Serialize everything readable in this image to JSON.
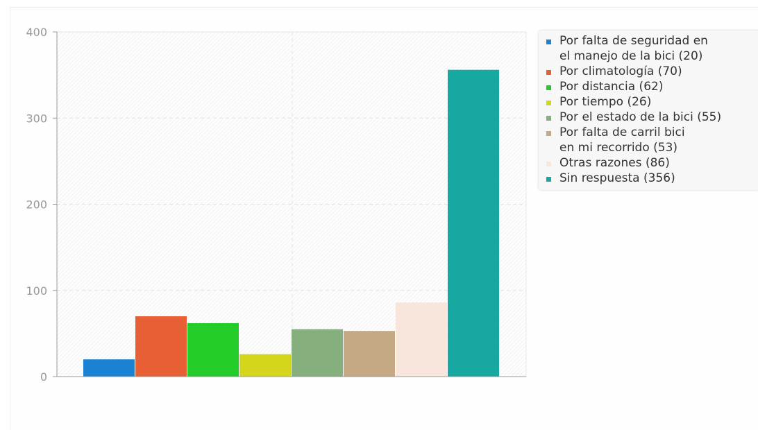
{
  "chart_data": {
    "type": "bar",
    "categories": [
      "Por falta de seguridad en\nel manejo de la bici (20)",
      "Por climatología (70)",
      "Por distancia (62)",
      "Por tiempo (26)",
      "Por el estado de la bici (55)",
      "Por falta de carril bici\nen mi recorrido (53)",
      "Otras razones (86)",
      "Sin respuesta (356)"
    ],
    "values": [
      20,
      70,
      62,
      26,
      55,
      53,
      86,
      356
    ],
    "colors": [
      "#1a81d3",
      "#e85f35",
      "#23cc28",
      "#d4d61c",
      "#85b07e",
      "#c5a983",
      "#f8e6dc",
      "#17a9a1"
    ],
    "ylim": [
      0,
      400
    ],
    "yticks": [
      "0",
      "100",
      "200",
      "300",
      "400"
    ],
    "grid": true,
    "legend_position": "right"
  }
}
